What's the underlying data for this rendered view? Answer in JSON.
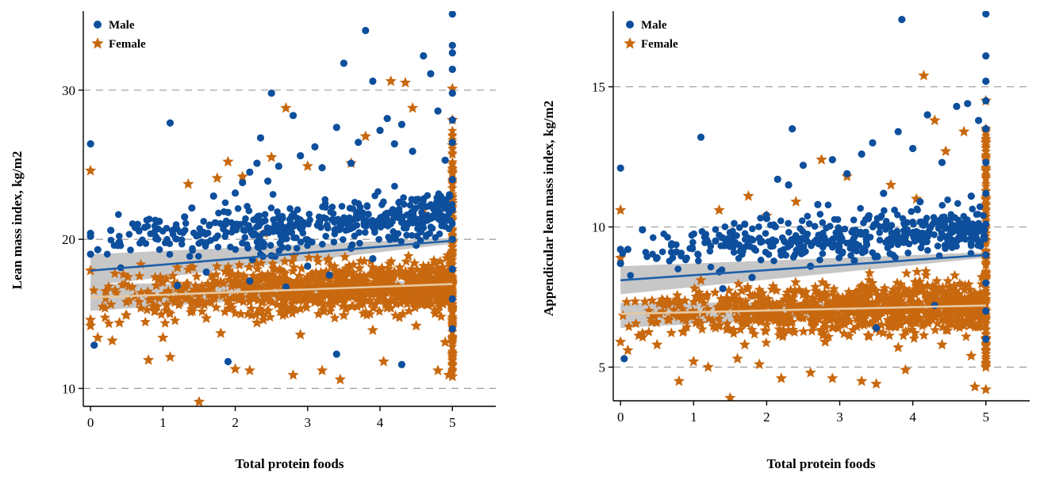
{
  "colors": {
    "male": "#0d4f9c",
    "female": "#c8680f",
    "male_fit": "#1f5fa8",
    "female_fit": "#e8c8a0",
    "ci_band": "#bdbdbd",
    "grid": "#9a9a9a"
  },
  "chart_data": [
    {
      "type": "scatter",
      "title": "",
      "xlabel": "Total protein foods",
      "ylabel": "Lean mass index, kg/m2",
      "xlim": [
        -0.1,
        5.6
      ],
      "ylim": [
        8.8,
        35.3
      ],
      "xticks": [
        0,
        1,
        2,
        3,
        4,
        5
      ],
      "yticks": [
        10,
        20,
        30
      ],
      "grid": "horizontal dashed at y ticks",
      "legend_position": "top-left",
      "series": [
        {
          "name": "Male",
          "marker": "circle",
          "points": [
            [
              0.0,
              26.4
            ],
            [
              0.0,
              20.4
            ],
            [
              0.0,
              20.2
            ],
            [
              0.0,
              19.0
            ],
            [
              0.05,
              12.9
            ],
            [
              0.1,
              19.3
            ],
            [
              0.28,
              20.6
            ],
            [
              0.4,
              19.8
            ],
            [
              0.65,
              21.0
            ],
            [
              0.75,
              20.8
            ],
            [
              0.95,
              21.2
            ],
            [
              1.1,
              27.8
            ],
            [
              1.3,
              21.5
            ],
            [
              1.4,
              22.1
            ],
            [
              1.5,
              20.3
            ],
            [
              1.7,
              22.9
            ],
            [
              1.9,
              21.8
            ],
            [
              2.0,
              23.1
            ],
            [
              2.1,
              23.8
            ],
            [
              2.2,
              24.5
            ],
            [
              2.3,
              25.1
            ],
            [
              2.35,
              26.8
            ],
            [
              2.45,
              23.9
            ],
            [
              2.5,
              29.8
            ],
            [
              2.6,
              24.9
            ],
            [
              2.8,
              28.3
            ],
            [
              2.9,
              25.6
            ],
            [
              3.1,
              26.2
            ],
            [
              3.2,
              24.8
            ],
            [
              3.4,
              27.5
            ],
            [
              3.5,
              31.8
            ],
            [
              3.6,
              25.1
            ],
            [
              3.7,
              26.5
            ],
            [
              3.8,
              34.0
            ],
            [
              3.9,
              30.6
            ],
            [
              4.0,
              27.3
            ],
            [
              4.1,
              28.1
            ],
            [
              4.2,
              26.4
            ],
            [
              4.3,
              27.7
            ],
            [
              4.45,
              25.9
            ],
            [
              4.6,
              32.3
            ],
            [
              4.7,
              31.1
            ],
            [
              4.8,
              28.6
            ],
            [
              4.9,
              25.3
            ],
            [
              5.0,
              35.1
            ],
            [
              5.0,
              33.0
            ],
            [
              5.0,
              32.5
            ],
            [
              5.0,
              31.4
            ],
            [
              5.0,
              29.8
            ],
            [
              5.0,
              28.0
            ],
            [
              5.0,
              26.5
            ],
            [
              5.0,
              24.0
            ],
            [
              5.0,
              22.0
            ],
            [
              5.0,
              20.0
            ],
            [
              5.0,
              18.0
            ],
            [
              5.0,
              16.0
            ],
            [
              5.0,
              14.0
            ],
            [
              1.9,
              11.8
            ],
            [
              3.4,
              12.3
            ],
            [
              4.3,
              11.6
            ],
            [
              2.7,
              16.8
            ],
            [
              3.0,
              18.2
            ],
            [
              3.3,
              17.6
            ],
            [
              3.6,
              19.4
            ],
            [
              3.9,
              18.7
            ],
            [
              4.2,
              20.3
            ],
            [
              4.5,
              19.6
            ],
            [
              4.7,
              21.4
            ],
            [
              2.2,
              17.2
            ],
            [
              2.5,
              18.9
            ],
            [
              1.6,
              17.8
            ],
            [
              1.2,
              16.9
            ]
          ]
        },
        {
          "name": "Female",
          "marker": "star",
          "points": [
            [
              0.0,
              24.6
            ],
            [
              0.0,
              17.9
            ],
            [
              0.0,
              14.6
            ],
            [
              0.0,
              14.2
            ],
            [
              0.1,
              13.4
            ],
            [
              0.3,
              13.2
            ],
            [
              0.4,
              14.4
            ],
            [
              0.5,
              15.8
            ],
            [
              0.8,
              11.9
            ],
            [
              1.0,
              13.4
            ],
            [
              1.1,
              12.1
            ],
            [
              1.35,
              23.7
            ],
            [
              1.5,
              9.1
            ],
            [
              1.6,
              14.7
            ],
            [
              1.75,
              24.1
            ],
            [
              1.9,
              25.2
            ],
            [
              2.0,
              11.3
            ],
            [
              2.1,
              24.2
            ],
            [
              2.2,
              11.2
            ],
            [
              2.4,
              20.4
            ],
            [
              2.5,
              25.5
            ],
            [
              2.7,
              28.8
            ],
            [
              2.8,
              10.9
            ],
            [
              3.0,
              24.9
            ],
            [
              3.2,
              11.2
            ],
            [
              3.45,
              10.6
            ],
            [
              3.6,
              25.1
            ],
            [
              3.8,
              26.9
            ],
            [
              4.05,
              11.8
            ],
            [
              4.15,
              30.6
            ],
            [
              4.35,
              30.5
            ],
            [
              4.45,
              28.8
            ],
            [
              4.6,
              22.0
            ],
            [
              4.8,
              11.2
            ],
            [
              4.95,
              10.9
            ],
            [
              5.0,
              30.1
            ],
            [
              5.0,
              28.0
            ],
            [
              5.0,
              26.3
            ],
            [
              5.0,
              24.5
            ],
            [
              5.0,
              22.4
            ],
            [
              5.0,
              19.8
            ],
            [
              5.0,
              17.1
            ],
            [
              5.0,
              14.6
            ],
            [
              5.0,
              12.3
            ],
            [
              5.0,
              10.8
            ],
            [
              2.3,
              14.4
            ],
            [
              2.6,
              16.2
            ],
            [
              2.9,
              13.6
            ],
            [
              3.1,
              15.8
            ],
            [
              3.3,
              17.3
            ],
            [
              3.5,
              14.9
            ],
            [
              3.7,
              16.6
            ],
            [
              3.9,
              13.9
            ],
            [
              4.1,
              15.4
            ],
            [
              4.3,
              17.8
            ],
            [
              4.5,
              14.2
            ],
            [
              4.7,
              16.9
            ],
            [
              4.9,
              13.1
            ],
            [
              1.4,
              15.3
            ],
            [
              1.8,
              13.7
            ],
            [
              0.7,
              16.4
            ],
            [
              1.2,
              18.1
            ]
          ]
        }
      ],
      "fits": [
        {
          "series": "Male",
          "x": [
            0,
            5
          ],
          "y": [
            17.9,
            19.9
          ],
          "ci_low": [
            16.9,
            19.7
          ],
          "ci_high": [
            19.0,
            20.1
          ]
        },
        {
          "series": "Female",
          "x": [
            0,
            5
          ],
          "y": [
            16.1,
            17.0
          ],
          "ci_low": [
            15.2,
            16.8
          ],
          "ci_high": [
            17.0,
            17.2
          ]
        }
      ]
    },
    {
      "type": "scatter",
      "title": "",
      "xlabel": "Total protein foods",
      "ylabel": "Appendicular lean mass index, kg/m2",
      "xlim": [
        -0.1,
        5.6
      ],
      "ylim": [
        3.8,
        17.7
      ],
      "xticks": [
        0,
        1,
        2,
        3,
        4,
        5
      ],
      "yticks": [
        5,
        10,
        15
      ],
      "grid": "horizontal dashed at y ticks",
      "legend_position": "top-left",
      "series": [
        {
          "name": "Male",
          "marker": "circle",
          "points": [
            [
              0.0,
              12.1
            ],
            [
              0.0,
              9.2
            ],
            [
              0.0,
              8.7
            ],
            [
              0.05,
              5.3
            ],
            [
              0.1,
              9.2
            ],
            [
              0.3,
              9.9
            ],
            [
              0.5,
              8.9
            ],
            [
              0.7,
              9.4
            ],
            [
              1.1,
              13.2
            ],
            [
              1.3,
              9.5
            ],
            [
              1.5,
              9.8
            ],
            [
              1.7,
              10.1
            ],
            [
              1.9,
              9.6
            ],
            [
              2.0,
              10.3
            ],
            [
              2.15,
              11.7
            ],
            [
              2.3,
              11.5
            ],
            [
              2.35,
              13.5
            ],
            [
              2.5,
              12.2
            ],
            [
              2.7,
              10.8
            ],
            [
              2.9,
              12.4
            ],
            [
              3.1,
              11.9
            ],
            [
              3.3,
              12.6
            ],
            [
              3.45,
              13.0
            ],
            [
              3.6,
              11.2
            ],
            [
              3.8,
              13.4
            ],
            [
              3.85,
              17.4
            ],
            [
              4.0,
              12.8
            ],
            [
              4.2,
              14.0
            ],
            [
              4.4,
              12.3
            ],
            [
              4.6,
              14.3
            ],
            [
              4.75,
              14.4
            ],
            [
              4.9,
              13.8
            ],
            [
              5.0,
              17.6
            ],
            [
              5.0,
              16.1
            ],
            [
              5.0,
              15.2
            ],
            [
              5.0,
              14.5
            ],
            [
              5.0,
              13.5
            ],
            [
              5.0,
              12.3
            ],
            [
              5.0,
              11.2
            ],
            [
              5.0,
              10.1
            ],
            [
              5.0,
              9.0
            ],
            [
              5.0,
              8.0
            ],
            [
              5.0,
              7.0
            ],
            [
              5.0,
              6.0
            ],
            [
              2.6,
              8.6
            ],
            [
              2.8,
              9.4
            ],
            [
              3.0,
              9.9
            ],
            [
              3.2,
              8.8
            ],
            [
              3.4,
              10.4
            ],
            [
              3.7,
              9.6
            ],
            [
              4.1,
              10.9
            ],
            [
              4.5,
              9.7
            ],
            [
              4.8,
              11.1
            ],
            [
              1.8,
              8.2
            ],
            [
              2.2,
              9.0
            ],
            [
              1.4,
              7.8
            ],
            [
              3.5,
              6.4
            ],
            [
              4.3,
              7.2
            ]
          ]
        },
        {
          "name": "Female",
          "marker": "star",
          "points": [
            [
              0.0,
              10.6
            ],
            [
              0.0,
              8.9
            ],
            [
              0.0,
              5.9
            ],
            [
              0.1,
              5.6
            ],
            [
              0.3,
              6.2
            ],
            [
              0.5,
              5.8
            ],
            [
              0.8,
              4.5
            ],
            [
              1.0,
              5.2
            ],
            [
              1.2,
              5.0
            ],
            [
              1.35,
              10.6
            ],
            [
              1.5,
              3.9
            ],
            [
              1.6,
              5.3
            ],
            [
              1.75,
              11.1
            ],
            [
              1.9,
              5.1
            ],
            [
              2.0,
              10.4
            ],
            [
              2.2,
              4.6
            ],
            [
              2.4,
              10.9
            ],
            [
              2.6,
              4.8
            ],
            [
              2.75,
              12.4
            ],
            [
              2.9,
              4.6
            ],
            [
              3.1,
              11.8
            ],
            [
              3.3,
              4.5
            ],
            [
              3.5,
              4.4
            ],
            [
              3.7,
              11.5
            ],
            [
              3.9,
              4.9
            ],
            [
              4.05,
              11.0
            ],
            [
              4.15,
              15.4
            ],
            [
              4.3,
              13.8
            ],
            [
              4.45,
              12.7
            ],
            [
              4.7,
              13.4
            ],
            [
              4.85,
              4.3
            ],
            [
              5.0,
              14.5
            ],
            [
              5.0,
              13.0
            ],
            [
              5.0,
              12.0
            ],
            [
              5.0,
              11.0
            ],
            [
              5.0,
              9.5
            ],
            [
              5.0,
              8.2
            ],
            [
              5.0,
              7.0
            ],
            [
              5.0,
              6.0
            ],
            [
              5.0,
              5.0
            ],
            [
              5.0,
              4.2
            ],
            [
              2.3,
              6.3
            ],
            [
              2.5,
              7.1
            ],
            [
              2.8,
              5.9
            ],
            [
              3.0,
              6.8
            ],
            [
              3.2,
              7.6
            ],
            [
              3.4,
              6.1
            ],
            [
              3.6,
              7.3
            ],
            [
              3.8,
              5.7
            ],
            [
              4.0,
              6.6
            ],
            [
              4.2,
              7.9
            ],
            [
              4.4,
              5.8
            ],
            [
              4.6,
              7.0
            ],
            [
              4.8,
              5.4
            ],
            [
              1.3,
              6.4
            ],
            [
              1.7,
              5.8
            ],
            [
              0.6,
              7.2
            ],
            [
              1.1,
              8.1
            ]
          ]
        }
      ],
      "fits": [
        {
          "series": "Male",
          "x": [
            0,
            5
          ],
          "y": [
            8.1,
            9.0
          ],
          "ci_low": [
            7.6,
            8.9
          ],
          "ci_high": [
            8.6,
            9.1
          ]
        },
        {
          "series": "Female",
          "x": [
            0,
            5
          ],
          "y": [
            6.9,
            7.2
          ],
          "ci_low": [
            6.4,
            7.1
          ],
          "ci_high": [
            7.3,
            7.3
          ]
        }
      ]
    }
  ]
}
